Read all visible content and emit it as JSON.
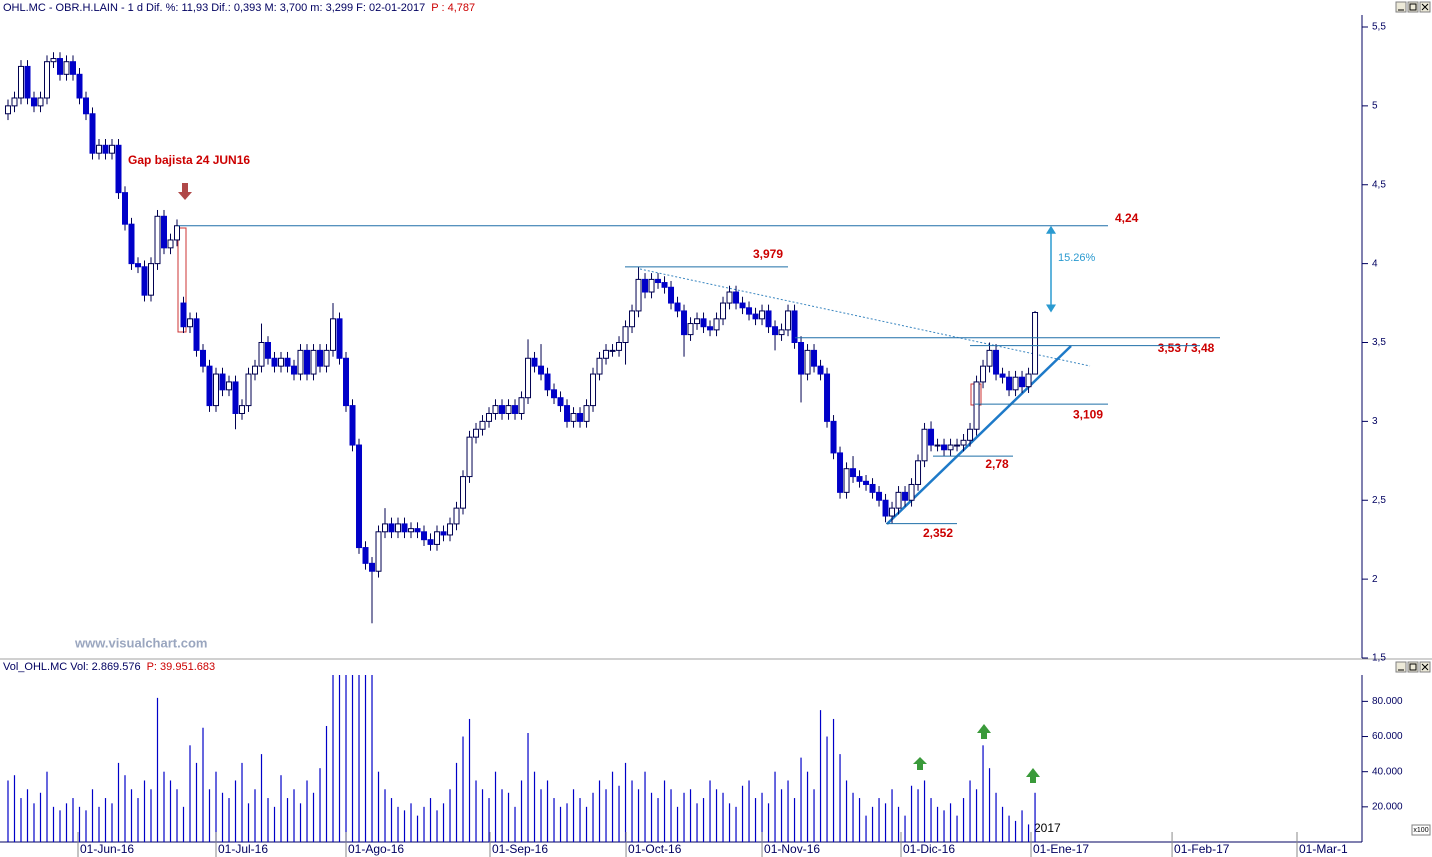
{
  "chart_data": [
    {
      "type": "candlestick",
      "title": "OHL.MC - OBR.H.LAIN - 1 d Dif. %: 11,93 Dif.: 0,393 M: 3,700 m: 3,299 F: 02-01-2017",
      "subtitle": "P : 4,787",
      "watermark": "www.visualchart.com",
      "annotations": [
        "Gap bajista 24 JUN16",
        "15.26%"
      ],
      "color": "#0000c8",
      "xlim": [
        -1.23,
        208.3
      ],
      "ylim": [
        1.5,
        5.576
      ],
      "yticks": [
        {
          "value": 5.5,
          "label": "5,5"
        },
        5,
        {
          "value": 4.5,
          "label": "4,5"
        },
        4,
        {
          "value": 3.5,
          "label": "3,5"
        },
        3,
        {
          "value": 2.5,
          "label": "2,5"
        },
        2,
        {
          "value": 1.5,
          "label": "1,5"
        }
      ],
      "levels": [
        {
          "value": 4.24,
          "label": "4,24"
        },
        {
          "value": 3.979,
          "label": "3,979"
        },
        {
          "value": 3.53,
          "label": "3,53 / 3,48"
        },
        {
          "value": 3.48
        },
        {
          "value": 3.109,
          "label": "3,109"
        },
        {
          "value": 2.78,
          "label": "2,78"
        },
        {
          "value": 2.352,
          "label": "2,352"
        }
      ],
      "open": [
        4.95,
        5.0,
        5.05,
        5.25,
        5.05,
        5.0,
        5.05,
        5.28,
        5.3,
        5.2,
        5.28,
        5.2,
        5.05,
        4.95,
        4.7,
        4.75,
        4.7,
        4.75,
        4.45,
        4.25,
        4.0,
        3.98,
        3.8,
        4.0,
        4.3,
        4.1,
        4.15,
        3.75,
        3.6,
        3.65,
        3.45,
        3.35,
        3.1,
        3.3,
        3.2,
        3.25,
        3.05,
        3.1,
        3.3,
        3.35,
        3.5,
        3.4,
        3.35,
        3.4,
        3.35,
        3.3,
        3.45,
        3.3,
        3.45,
        3.35,
        3.45,
        3.65,
        3.4,
        3.1,
        2.85,
        2.2,
        2.1,
        2.05,
        2.3,
        2.35,
        2.3,
        2.35,
        2.3,
        2.32,
        2.3,
        2.25,
        2.22,
        2.3,
        2.28,
        2.35,
        2.45,
        2.65,
        2.9,
        2.95,
        3.0,
        3.05,
        3.1,
        3.05,
        3.1,
        3.05,
        3.15,
        3.4,
        3.35,
        3.3,
        3.2,
        3.15,
        3.1,
        3.0,
        3.05,
        3.0,
        3.1,
        3.3,
        3.4,
        3.45,
        3.45,
        3.5,
        3.6,
        3.7,
        3.9,
        3.82,
        3.9,
        3.88,
        3.85,
        3.75,
        3.7,
        3.55,
        3.62,
        3.65,
        3.6,
        3.58,
        3.65,
        3.75,
        3.82,
        3.75,
        3.72,
        3.68,
        3.65,
        3.7,
        3.6,
        3.55,
        3.58,
        3.7,
        3.5,
        3.3,
        3.45,
        3.35,
        3.3,
        3.0,
        2.8,
        2.55,
        2.7,
        2.65,
        2.62,
        2.6,
        2.55,
        2.5,
        2.4,
        2.45,
        2.55,
        2.5,
        2.6,
        2.75,
        2.95,
        2.85,
        2.85,
        2.82,
        2.85,
        2.85,
        2.88,
        2.95,
        3.25,
        3.35,
        3.45,
        3.3,
        3.28,
        3.2,
        3.28,
        3.22,
        3.3
      ],
      "high": [
        5.04,
        5.09,
        5.29,
        5.29,
        5.09,
        5.09,
        5.32,
        5.34,
        5.34,
        5.32,
        5.32,
        5.24,
        5.09,
        4.99,
        4.79,
        4.79,
        4.79,
        4.79,
        4.49,
        4.29,
        4.04,
        4.02,
        4.04,
        4.34,
        4.34,
        4.19,
        4.28,
        3.79,
        3.69,
        3.69,
        3.49,
        3.39,
        3.34,
        3.34,
        3.29,
        3.29,
        3.14,
        3.34,
        3.39,
        3.62,
        3.54,
        3.44,
        3.44,
        3.44,
        3.39,
        3.49,
        3.49,
        3.49,
        3.49,
        3.49,
        3.75,
        3.69,
        3.44,
        3.14,
        2.89,
        2.24,
        2.14,
        2.34,
        2.45,
        2.39,
        2.39,
        2.39,
        2.36,
        2.36,
        2.34,
        2.29,
        2.34,
        2.34,
        2.39,
        2.49,
        2.69,
        2.94,
        2.99,
        3.04,
        3.09,
        3.14,
        3.14,
        3.14,
        3.14,
        3.19,
        3.52,
        3.44,
        3.49,
        3.34,
        3.24,
        3.19,
        3.14,
        3.09,
        3.09,
        3.14,
        3.34,
        3.44,
        3.49,
        3.49,
        3.54,
        3.64,
        3.74,
        3.98,
        3.94,
        3.94,
        3.94,
        3.92,
        3.89,
        3.79,
        3.74,
        3.66,
        3.69,
        3.69,
        3.64,
        3.69,
        3.79,
        3.86,
        3.86,
        3.79,
        3.76,
        3.72,
        3.74,
        3.74,
        3.64,
        3.62,
        3.74,
        3.74,
        3.54,
        3.49,
        3.49,
        3.39,
        3.34,
        3.04,
        2.84,
        2.74,
        2.78,
        2.69,
        2.66,
        2.64,
        2.59,
        2.54,
        2.49,
        2.59,
        2.59,
        2.64,
        2.79,
        2.99,
        3.0,
        2.89,
        2.89,
        2.89,
        2.89,
        2.92,
        2.99,
        3.29,
        3.39,
        3.5,
        3.49,
        3.34,
        3.32,
        3.32,
        3.32,
        3.34,
        3.7
      ],
      "low": [
        4.91,
        4.96,
        5.01,
        5.01,
        4.96,
        4.96,
        5.01,
        5.24,
        5.16,
        5.16,
        5.16,
        5.01,
        4.91,
        4.66,
        4.66,
        4.66,
        4.66,
        4.41,
        4.21,
        3.96,
        3.94,
        3.76,
        3.76,
        3.96,
        4.06,
        4.06,
        4.11,
        3.56,
        3.56,
        3.41,
        3.31,
        3.06,
        3.06,
        3.16,
        3.16,
        2.95,
        3.01,
        3.06,
        3.26,
        3.31,
        3.36,
        3.31,
        3.31,
        3.31,
        3.26,
        3.26,
        3.26,
        3.26,
        3.31,
        3.31,
        3.41,
        3.36,
        3.06,
        2.81,
        2.16,
        2.06,
        1.72,
        2.01,
        2.26,
        2.26,
        2.26,
        2.26,
        2.26,
        2.26,
        2.21,
        2.18,
        2.18,
        2.24,
        2.24,
        2.31,
        2.41,
        2.61,
        2.86,
        2.91,
        2.96,
        3.01,
        3.01,
        3.01,
        3.01,
        3.01,
        3.11,
        3.31,
        3.26,
        3.16,
        3.11,
        3.06,
        2.96,
        2.96,
        2.96,
        2.96,
        3.06,
        3.26,
        3.36,
        3.41,
        3.41,
        3.36,
        3.56,
        3.66,
        3.78,
        3.78,
        3.84,
        3.81,
        3.71,
        3.66,
        3.41,
        3.51,
        3.58,
        3.56,
        3.54,
        3.54,
        3.61,
        3.71,
        3.71,
        3.68,
        3.64,
        3.61,
        3.61,
        3.56,
        3.45,
        3.51,
        3.54,
        3.46,
        3.12,
        3.26,
        3.31,
        3.26,
        2.96,
        2.76,
        2.51,
        2.51,
        2.61,
        2.58,
        2.56,
        2.51,
        2.46,
        2.36,
        2.352,
        2.41,
        2.46,
        2.46,
        2.56,
        2.71,
        2.81,
        2.81,
        2.78,
        2.78,
        2.81,
        2.81,
        2.84,
        2.91,
        3.21,
        3.31,
        3.26,
        3.24,
        3.16,
        3.16,
        3.18,
        3.18,
        3.299
      ],
      "close": [
        5.0,
        5.05,
        5.25,
        5.05,
        5.0,
        5.05,
        5.28,
        5.3,
        5.2,
        5.28,
        5.2,
        5.05,
        4.95,
        4.7,
        4.75,
        4.7,
        4.75,
        4.45,
        4.25,
        4.0,
        3.98,
        3.8,
        4.0,
        4.3,
        4.1,
        4.15,
        4.24,
        3.6,
        3.65,
        3.45,
        3.35,
        3.1,
        3.3,
        3.2,
        3.25,
        3.05,
        3.1,
        3.3,
        3.35,
        3.5,
        3.4,
        3.35,
        3.4,
        3.35,
        3.3,
        3.45,
        3.3,
        3.45,
        3.35,
        3.45,
        3.65,
        3.4,
        3.1,
        2.85,
        2.2,
        2.1,
        2.05,
        2.3,
        2.35,
        2.3,
        2.35,
        2.3,
        2.32,
        2.3,
        2.25,
        2.22,
        2.3,
        2.28,
        2.35,
        2.45,
        2.65,
        2.9,
        2.95,
        3.0,
        3.05,
        3.1,
        3.05,
        3.1,
        3.05,
        3.15,
        3.4,
        3.35,
        3.3,
        3.2,
        3.15,
        3.1,
        3.0,
        3.05,
        3.0,
        3.1,
        3.3,
        3.4,
        3.45,
        3.45,
        3.5,
        3.6,
        3.7,
        3.9,
        3.82,
        3.9,
        3.88,
        3.85,
        3.75,
        3.7,
        3.55,
        3.62,
        3.65,
        3.6,
        3.58,
        3.65,
        3.75,
        3.82,
        3.75,
        3.72,
        3.68,
        3.65,
        3.7,
        3.6,
        3.55,
        3.58,
        3.7,
        3.5,
        3.3,
        3.45,
        3.35,
        3.3,
        3.0,
        2.8,
        2.55,
        2.7,
        2.65,
        2.62,
        2.6,
        2.55,
        2.5,
        2.4,
        2.45,
        2.55,
        2.5,
        2.6,
        2.75,
        2.95,
        2.85,
        2.85,
        2.82,
        2.85,
        2.85,
        2.88,
        2.95,
        3.25,
        3.35,
        3.45,
        3.3,
        3.28,
        3.2,
        3.28,
        3.22,
        3.3,
        3.69
      ]
    },
    {
      "type": "bar",
      "title": "Vol_OHL.MC Vol: 2.869.576",
      "subtitle": "P: 39.951.683",
      "unit": "x100",
      "year_label": "2017",
      "color": "#0000c8",
      "xlim": [
        -1.23,
        208.3
      ],
      "xticks": [
        {
          "value": 10.77,
          "label": "01-Jun-16"
        },
        {
          "value": 32,
          "label": "01-Jul-16"
        },
        {
          "value": 52,
          "label": "01-Ago-16"
        },
        {
          "value": 74.15,
          "label": "01-Sep-16"
        },
        {
          "value": 95.08,
          "label": "01-Oct-16"
        },
        {
          "value": 116,
          "label": "01-Nov-16"
        },
        {
          "value": 137.38,
          "label": "01-Dic-16"
        },
        {
          "value": 157.38,
          "label": "01-Ene-17"
        },
        {
          "value": 179.08,
          "label": "01-Feb-17"
        },
        {
          "value": 198.3,
          "label": "01-Mar-1"
        }
      ],
      "ylim": [
        0,
        95000
      ],
      "yticks": [
        {
          "value": 80000,
          "label": "80.000"
        },
        {
          "value": 60000,
          "label": "60.000"
        },
        {
          "value": 40000,
          "label": "40.000"
        },
        {
          "value": 20000,
          "label": "20.000"
        }
      ],
      "values": [
        35000,
        38000,
        25000,
        30000,
        22000,
        28000,
        40000,
        20000,
        18000,
        22000,
        25000,
        20000,
        18000,
        30000,
        20000,
        25000,
        22000,
        45000,
        38000,
        30000,
        25000,
        35000,
        30000,
        82000,
        40000,
        35000,
        30000,
        20000,
        55000,
        45000,
        65000,
        30000,
        40000,
        28000,
        25000,
        35000,
        45000,
        22000,
        30000,
        50000,
        25000,
        20000,
        38000,
        25000,
        30000,
        22000,
        35000,
        28000,
        42000,
        66000,
        95000,
        95000,
        95000,
        95000,
        95000,
        95000,
        95000,
        40000,
        30000,
        25000,
        20000,
        18000,
        22000,
        15000,
        20000,
        25000,
        18000,
        22000,
        30000,
        45000,
        60000,
        70000,
        35000,
        30000,
        25000,
        40000,
        30000,
        28000,
        20000,
        35000,
        62000,
        40000,
        30000,
        35000,
        25000,
        20000,
        22000,
        30000,
        25000,
        20000,
        28000,
        35000,
        30000,
        40000,
        32000,
        45000,
        35000,
        30000,
        40000,
        28000,
        25000,
        35000,
        30000,
        20000,
        28000,
        30000,
        22000,
        25000,
        35000,
        30000,
        28000,
        22000,
        20000,
        32000,
        35000,
        25000,
        28000,
        22000,
        40000,
        30000,
        35000,
        25000,
        48000,
        40000,
        30000,
        75000,
        60000,
        70000,
        50000,
        35000,
        28000,
        25000,
        15000,
        20000,
        25000,
        22000,
        30000,
        20000,
        15000,
        32000,
        30000,
        35000,
        25000,
        20000,
        18000,
        22000,
        15000,
        25000,
        35000,
        30000,
        55000,
        42000,
        28000,
        20000,
        15000,
        12000,
        18000,
        10000,
        28000
      ]
    }
  ]
}
